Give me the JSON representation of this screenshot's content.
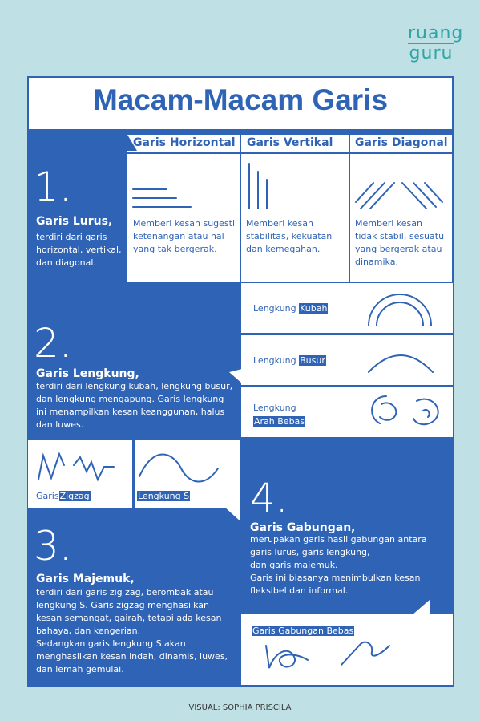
{
  "logo": {
    "line1": "ruang",
    "line2": "guru"
  },
  "title": "Macam-Macam Garis",
  "section1": {
    "number": "1.",
    "heading": "Garis Lurus,",
    "text": [
      "terdiri dari garis",
      "horizontal, vertikal,",
      "dan diagonal."
    ],
    "columns": [
      {
        "title": "Garis Horizontal",
        "icon": "horizontal-lines-icon",
        "desc": [
          "Memberi kesan sugesti",
          "ketenangan atau hal",
          "yang tak bergerak."
        ]
      },
      {
        "title": "Garis Vertikal",
        "icon": "vertical-lines-icon",
        "desc": [
          "Memberi kesan",
          "stabilitas, kekuatan",
          "dan kemegahan."
        ]
      },
      {
        "title": "Garis Diagonal",
        "icon": "diagonal-lines-icon",
        "desc": [
          "Memberi kesan",
          "tidak stabil, sesuatu",
          "yang bergerak atau",
          "dinamika."
        ]
      }
    ]
  },
  "section2": {
    "number": "2.",
    "heading": "Garis Lengkung,",
    "text": [
      "terdiri dari lengkung kubah, lengkung busur,",
      "dan lengkung mengapung. Garis lengkung",
      "ini menampilkan kesan keanggunan, halus",
      "dan luwes."
    ],
    "items": [
      {
        "prefix": "Lengkung",
        "highlight": "Kubah",
        "icon": "dome-curve-icon"
      },
      {
        "prefix": "Lengkung",
        "highlight": "Busur",
        "icon": "arc-curve-icon"
      },
      {
        "prefix": "Lengkung",
        "highlight": "Arah Bebas",
        "icon": "free-curve-icon"
      }
    ]
  },
  "section3": {
    "number": "3.",
    "heading": "Garis Majemuk,",
    "text": [
      "terdiri dari garis zig zag, berombak atau",
      "lengkung S. Garis zigzag menghasilkan",
      "kesan semangat, gairah, tetapi ada kesan",
      "bahaya, dan kengerian.",
      "Sedangkan garis lengkung S akan",
      "menghasilkan kesan indah, dinamis, luwes,",
      "dan lemah gemulai."
    ],
    "items": [
      {
        "prefix": "Garis",
        "highlight": "Zigzag",
        "icon": "zigzag-line-icon"
      },
      {
        "prefix": "",
        "highlight": "Lengkung S",
        "icon": "s-curve-icon"
      }
    ]
  },
  "section4": {
    "number": "4.",
    "heading": "Garis Gabungan,",
    "text": [
      "merupakan garis hasil gabungan antara",
      "garis lurus, garis lengkung,",
      "dan garis majemuk.",
      "Garis ini biasanya menimbulkan kesan",
      "fleksibel dan informal."
    ],
    "example": {
      "highlight": "Garis Gabungan Bebas",
      "icon": "combined-free-lines-icon"
    }
  },
  "footer": "VISUAL: SOPHIA PRISCILA"
}
